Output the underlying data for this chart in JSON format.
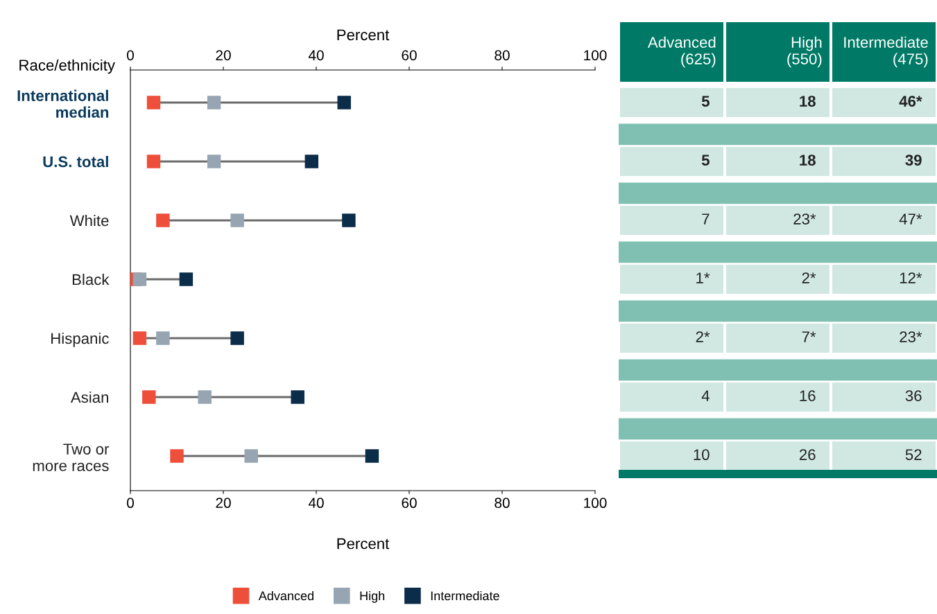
{
  "chart_data": {
    "type": "scatter",
    "orientation": "horizontal",
    "ylabel": "Race/ethnicity",
    "xlabel": "Percent",
    "x2label": "Percent",
    "categories": [
      "International\nmedian",
      "U.S. total",
      "White",
      "Black",
      "Hispanic",
      "Asian",
      "Two or\nmore races"
    ],
    "series": [
      {
        "name": "Advanced",
        "color": "#ee4f3b",
        "values": [
          5,
          5,
          7,
          1,
          2,
          4,
          10
        ],
        "value_labels": [
          "5",
          "5",
          "7",
          "1*",
          "2*",
          "4",
          "10"
        ]
      },
      {
        "name": "High",
        "color": "#97a5b3",
        "values": [
          18,
          18,
          23,
          2,
          7,
          16,
          26
        ],
        "value_labels": [
          "18",
          "18",
          "23*",
          "2*",
          "7*",
          "16",
          "26"
        ]
      },
      {
        "name": "Intermediate",
        "color": "#0b2d4a",
        "values": [
          46,
          39,
          47,
          12,
          23,
          36,
          52
        ],
        "value_labels": [
          "46*",
          "39",
          "47*",
          "12*",
          "23*",
          "36",
          "52"
        ]
      }
    ],
    "xlim": [
      0,
      100
    ],
    "xticks": [
      0,
      20,
      40,
      60,
      80,
      100
    ],
    "x2lim": [
      0,
      100
    ],
    "x2ticks": [
      0,
      20,
      40,
      60,
      80,
      100
    ],
    "annotations": [
      "Advanced\n(625)",
      "High\n(550)",
      "Intermediate\n(475)"
    ],
    "marker": "square",
    "legend": "bottom",
    "grid": false
  }
}
